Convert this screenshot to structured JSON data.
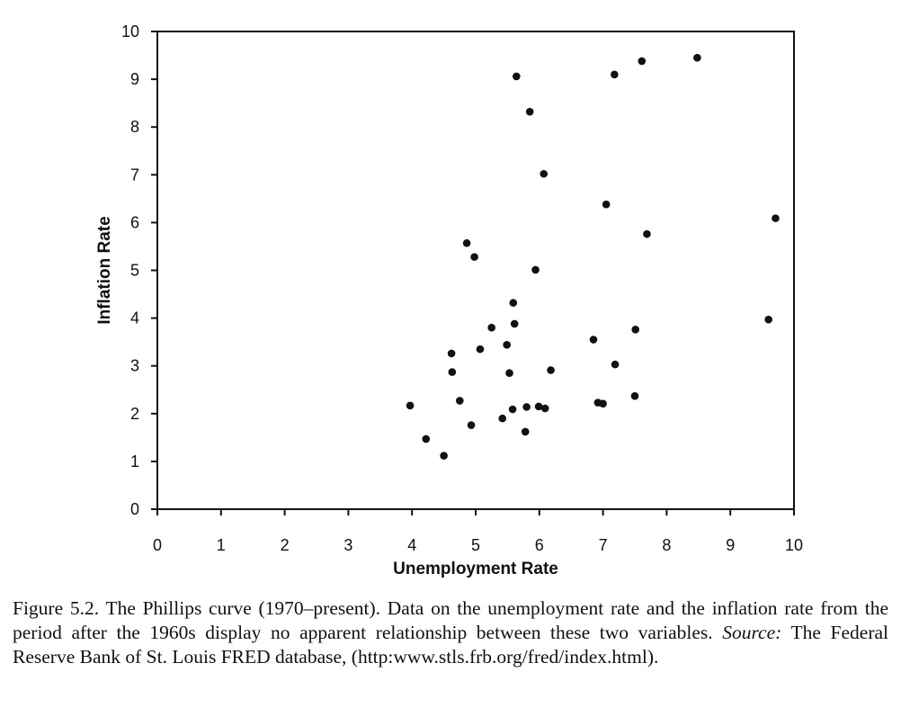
{
  "chart_data": {
    "type": "scatter",
    "title": "",
    "xlabel": "Unemployment Rate",
    "ylabel": "Inflation Rate",
    "xlim": [
      0,
      10
    ],
    "ylim": [
      0,
      10
    ],
    "xticks": [
      "0",
      "1",
      "2",
      "3",
      "4",
      "5",
      "6",
      "7",
      "8",
      "9",
      "10"
    ],
    "yticks": [
      "0",
      "1",
      "2",
      "3",
      "4",
      "5",
      "6",
      "7",
      "8",
      "9",
      "10"
    ],
    "grid": false,
    "legend": "none",
    "marker_color": "#111111",
    "points": [
      {
        "x": 3.97,
        "y": 2.17
      },
      {
        "x": 4.22,
        "y": 1.47
      },
      {
        "x": 4.5,
        "y": 1.12
      },
      {
        "x": 4.62,
        "y": 3.26
      },
      {
        "x": 4.63,
        "y": 2.87
      },
      {
        "x": 4.75,
        "y": 2.27
      },
      {
        "x": 4.86,
        "y": 5.57
      },
      {
        "x": 4.93,
        "y": 1.76
      },
      {
        "x": 4.98,
        "y": 5.28
      },
      {
        "x": 5.07,
        "y": 3.35
      },
      {
        "x": 5.25,
        "y": 3.8
      },
      {
        "x": 5.42,
        "y": 1.9
      },
      {
        "x": 5.49,
        "y": 3.44
      },
      {
        "x": 5.53,
        "y": 2.85
      },
      {
        "x": 5.58,
        "y": 2.09
      },
      {
        "x": 5.59,
        "y": 4.32
      },
      {
        "x": 5.61,
        "y": 3.88
      },
      {
        "x": 5.64,
        "y": 9.06
      },
      {
        "x": 5.78,
        "y": 1.62
      },
      {
        "x": 5.8,
        "y": 2.14
      },
      {
        "x": 5.85,
        "y": 8.32
      },
      {
        "x": 5.94,
        "y": 5.01
      },
      {
        "x": 5.99,
        "y": 2.15
      },
      {
        "x": 6.07,
        "y": 7.02
      },
      {
        "x": 6.09,
        "y": 2.11
      },
      {
        "x": 6.18,
        "y": 2.91
      },
      {
        "x": 6.85,
        "y": 3.55
      },
      {
        "x": 6.92,
        "y": 2.23
      },
      {
        "x": 7.0,
        "y": 2.21
      },
      {
        "x": 7.05,
        "y": 6.38
      },
      {
        "x": 7.18,
        "y": 9.1
      },
      {
        "x": 7.19,
        "y": 3.03
      },
      {
        "x": 7.5,
        "y": 2.37
      },
      {
        "x": 7.51,
        "y": 3.76
      },
      {
        "x": 7.61,
        "y": 9.38
      },
      {
        "x": 7.69,
        "y": 5.76
      },
      {
        "x": 8.48,
        "y": 9.45
      },
      {
        "x": 9.6,
        "y": 3.97
      },
      {
        "x": 9.71,
        "y": 6.09
      }
    ]
  },
  "caption": {
    "text": "Figure 5.2.  The Phillips curve (1970–present). Data on the unemployment rate and the inflation rate from the period after the 1960s display no apparent relationship between these two variables. ",
    "source_label": "Source:",
    "source_text": " The Federal Reserve Bank of St. Louis FRED database, (http:www.stls.frb.org/fred/index.html)."
  }
}
